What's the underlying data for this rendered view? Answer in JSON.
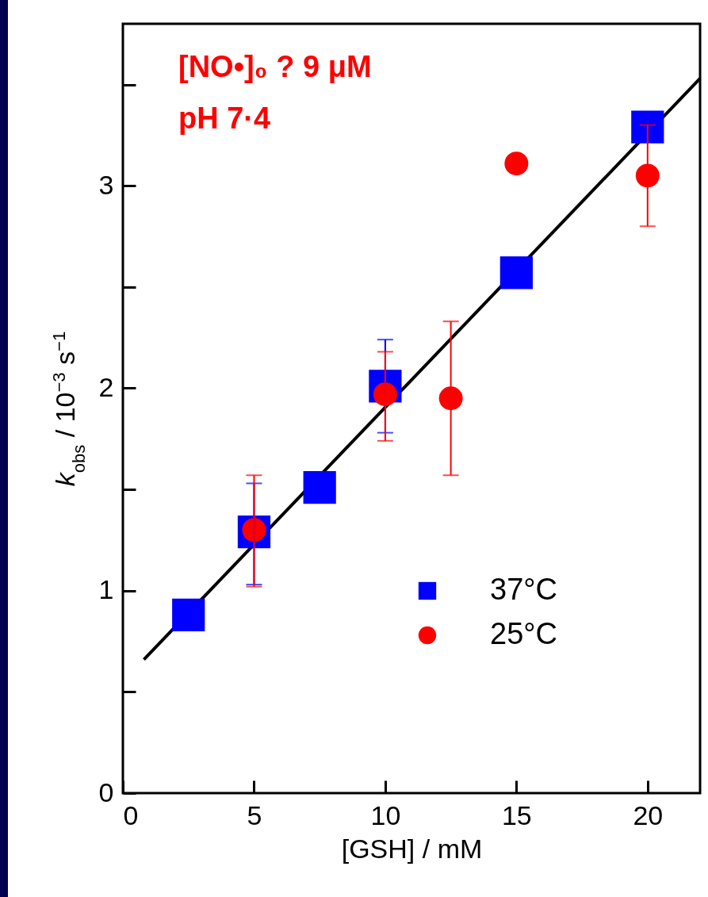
{
  "chart_data": {
    "type": "scatter",
    "xlabel": "[GSH] / mM",
    "ylabel": "k$_{obs}$ / 10$^{−3}$ s$^{−1}$",
    "xlim": [
      0,
      22
    ],
    "xticks": [
      0,
      5,
      10,
      15,
      20
    ],
    "ylim": [
      0,
      3.8
    ],
    "yticks": [
      0,
      {
        "value": 0.5,
        "label": null
      },
      1,
      {
        "value": 1.5,
        "label": null
      },
      2,
      {
        "value": 2.5,
        "label": null
      },
      3,
      {
        "value": 3.5,
        "label": null
      }
    ],
    "grid": false,
    "legend": "bottom right",
    "annotations": [
      "[NO•]₀ ? 9 μM",
      "pH 7·4"
    ],
    "series": [
      {
        "name": "37°C",
        "marker": "square",
        "color": "#0000ff",
        "x": [
          2.5,
          5,
          7.5,
          10,
          15,
          20
        ],
        "values": [
          0.88,
          1.29,
          1.51,
          2.01,
          2.57,
          3.29
        ],
        "errors": [
          null,
          [
            1.03,
            1.53
          ],
          null,
          0.23,
          null,
          null
        ]
      },
      {
        "name": "25°C",
        "marker": "circle",
        "color": "#ff0000",
        "x": [
          5,
          10,
          12.5,
          15,
          20
        ],
        "values": [
          1.3,
          1.97,
          1.95,
          3.11,
          3.05
        ],
        "errors": [
          [
            1.02,
            1.57
          ],
          [
            1.74,
            2.18
          ],
          [
            1.57,
            2.33
          ],
          null,
          [
            2.8,
            3.3
          ]
        ]
      },
      {
        "type": "line",
        "color": "#000000",
        "x": [
          0.8,
          22
        ],
        "values": [
          0.66,
          3.53
        ]
      }
    ]
  }
}
